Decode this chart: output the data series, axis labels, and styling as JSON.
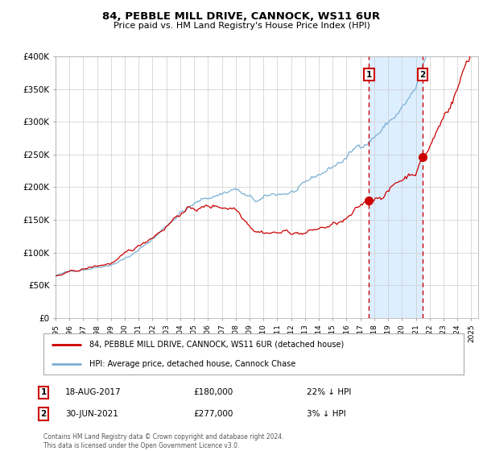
{
  "title1": "84, PEBBLE MILL DRIVE, CANNOCK, WS11 6UR",
  "title2": "Price paid vs. HM Land Registry's House Price Index (HPI)",
  "red_label": "84, PEBBLE MILL DRIVE, CANNOCK, WS11 6UR (detached house)",
  "blue_label": "HPI: Average price, detached house, Cannock Chase",
  "sale1_date": "18-AUG-2017",
  "sale1_price": 180000,
  "sale1_pct": "22% ↓ HPI",
  "sale2_date": "30-JUN-2021",
  "sale2_price": 277000,
  "sale2_pct": "3% ↓ HPI",
  "footnote": "Contains HM Land Registry data © Crown copyright and database right 2024.\nThis data is licensed under the Open Government Licence v3.0.",
  "ylim": [
    0,
    400000
  ],
  "xlim_start": 1995.0,
  "xlim_end": 2025.5,
  "red_color": "#cc0000",
  "blue_color": "#7ab0d4",
  "highlight_color": "#ddeeff",
  "vline_color": "#cc0000",
  "dot_color": "#cc0000",
  "grid_color": "#cccccc",
  "bg_color": "#ffffff",
  "sale1_year": 2017.622,
  "sale2_year": 2021.496
}
